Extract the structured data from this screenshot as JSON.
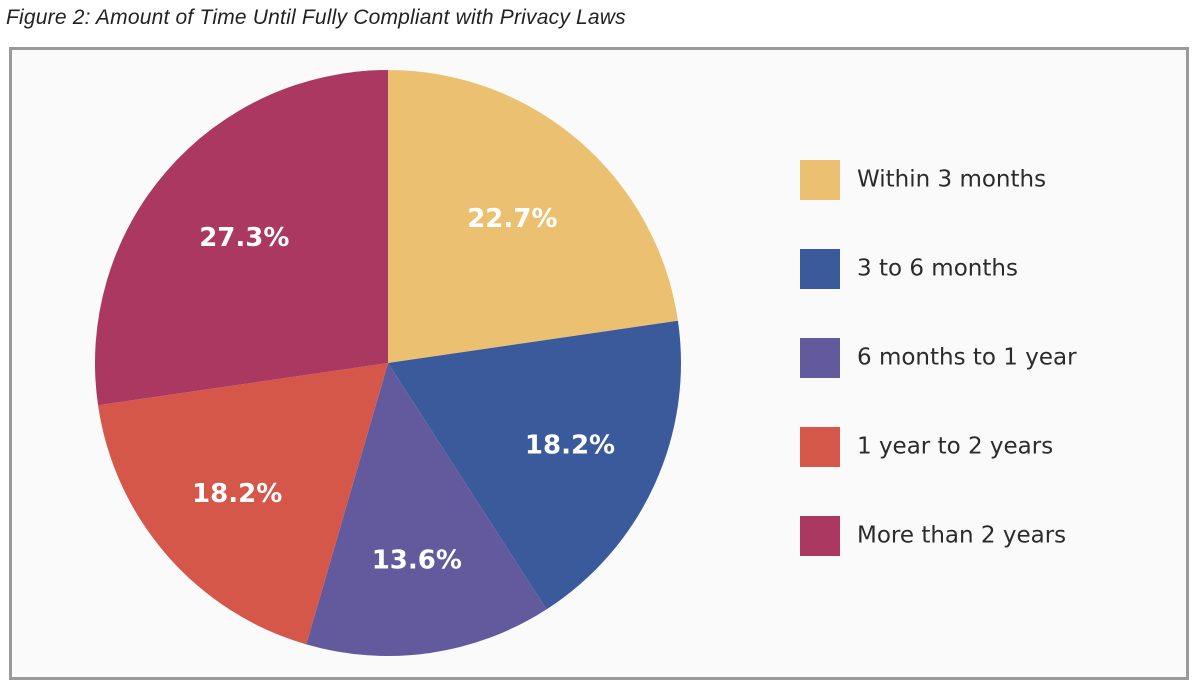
{
  "figure": {
    "caption": "Figure 2: Amount of Time Until Fully Compliant with Privacy Laws"
  },
  "chart_data": {
    "type": "pie",
    "title": "Figure 2: Amount of Time Until Fully Compliant with Privacy Laws",
    "categories": [
      "Within 3 months",
      "3 to 6 months",
      "6 months to 1 year",
      "1 year to 2 years",
      "More than 2 years"
    ],
    "values": [
      22.7,
      18.2,
      13.6,
      18.2,
      27.3
    ],
    "labels": [
      "22.7%",
      "18.2%",
      "13.6%",
      "18.2%",
      "27.3%"
    ],
    "colors": [
      "#ecc071",
      "#3a5a9c",
      "#635a9e",
      "#d4574a",
      "#aa3860"
    ],
    "start": "12 o'clock, clockwise",
    "legend_position": "right"
  }
}
